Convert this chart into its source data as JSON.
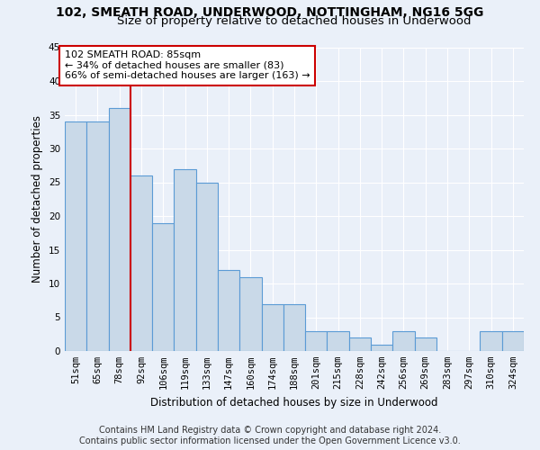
{
  "title": "102, SMEATH ROAD, UNDERWOOD, NOTTINGHAM, NG16 5GG",
  "subtitle": "Size of property relative to detached houses in Underwood",
  "xlabel": "Distribution of detached houses by size in Underwood",
  "ylabel": "Number of detached properties",
  "categories": [
    "51sqm",
    "65sqm",
    "78sqm",
    "92sqm",
    "106sqm",
    "119sqm",
    "133sqm",
    "147sqm",
    "160sqm",
    "174sqm",
    "188sqm",
    "201sqm",
    "215sqm",
    "228sqm",
    "242sqm",
    "256sqm",
    "269sqm",
    "283sqm",
    "297sqm",
    "310sqm",
    "324sqm"
  ],
  "values": [
    34,
    34,
    36,
    26,
    19,
    27,
    25,
    12,
    11,
    7,
    7,
    3,
    3,
    2,
    1,
    3,
    2,
    0,
    0,
    3,
    3
  ],
  "bar_color": "#c9d9e8",
  "bar_edge_color": "#5b9bd5",
  "bar_linewidth": 0.8,
  "vline_x": 2.5,
  "vline_color": "#cc0000",
  "annotation_text": "102 SMEATH ROAD: 85sqm\n← 34% of detached houses are smaller (83)\n66% of semi-detached houses are larger (163) →",
  "annotation_box_color": "#ffffff",
  "annotation_box_edge": "#cc0000",
  "ylim": [
    0,
    45
  ],
  "yticks": [
    0,
    5,
    10,
    15,
    20,
    25,
    30,
    35,
    40,
    45
  ],
  "background_color": "#eaf0f9",
  "plot_bg_color": "#eaf0f9",
  "grid_color": "#ffffff",
  "footer_line1": "Contains HM Land Registry data © Crown copyright and database right 2024.",
  "footer_line2": "Contains public sector information licensed under the Open Government Licence v3.0.",
  "title_fontsize": 10,
  "subtitle_fontsize": 9.5,
  "axis_label_fontsize": 8.5,
  "tick_fontsize": 7.5,
  "annotation_fontsize": 8,
  "footer_fontsize": 7
}
